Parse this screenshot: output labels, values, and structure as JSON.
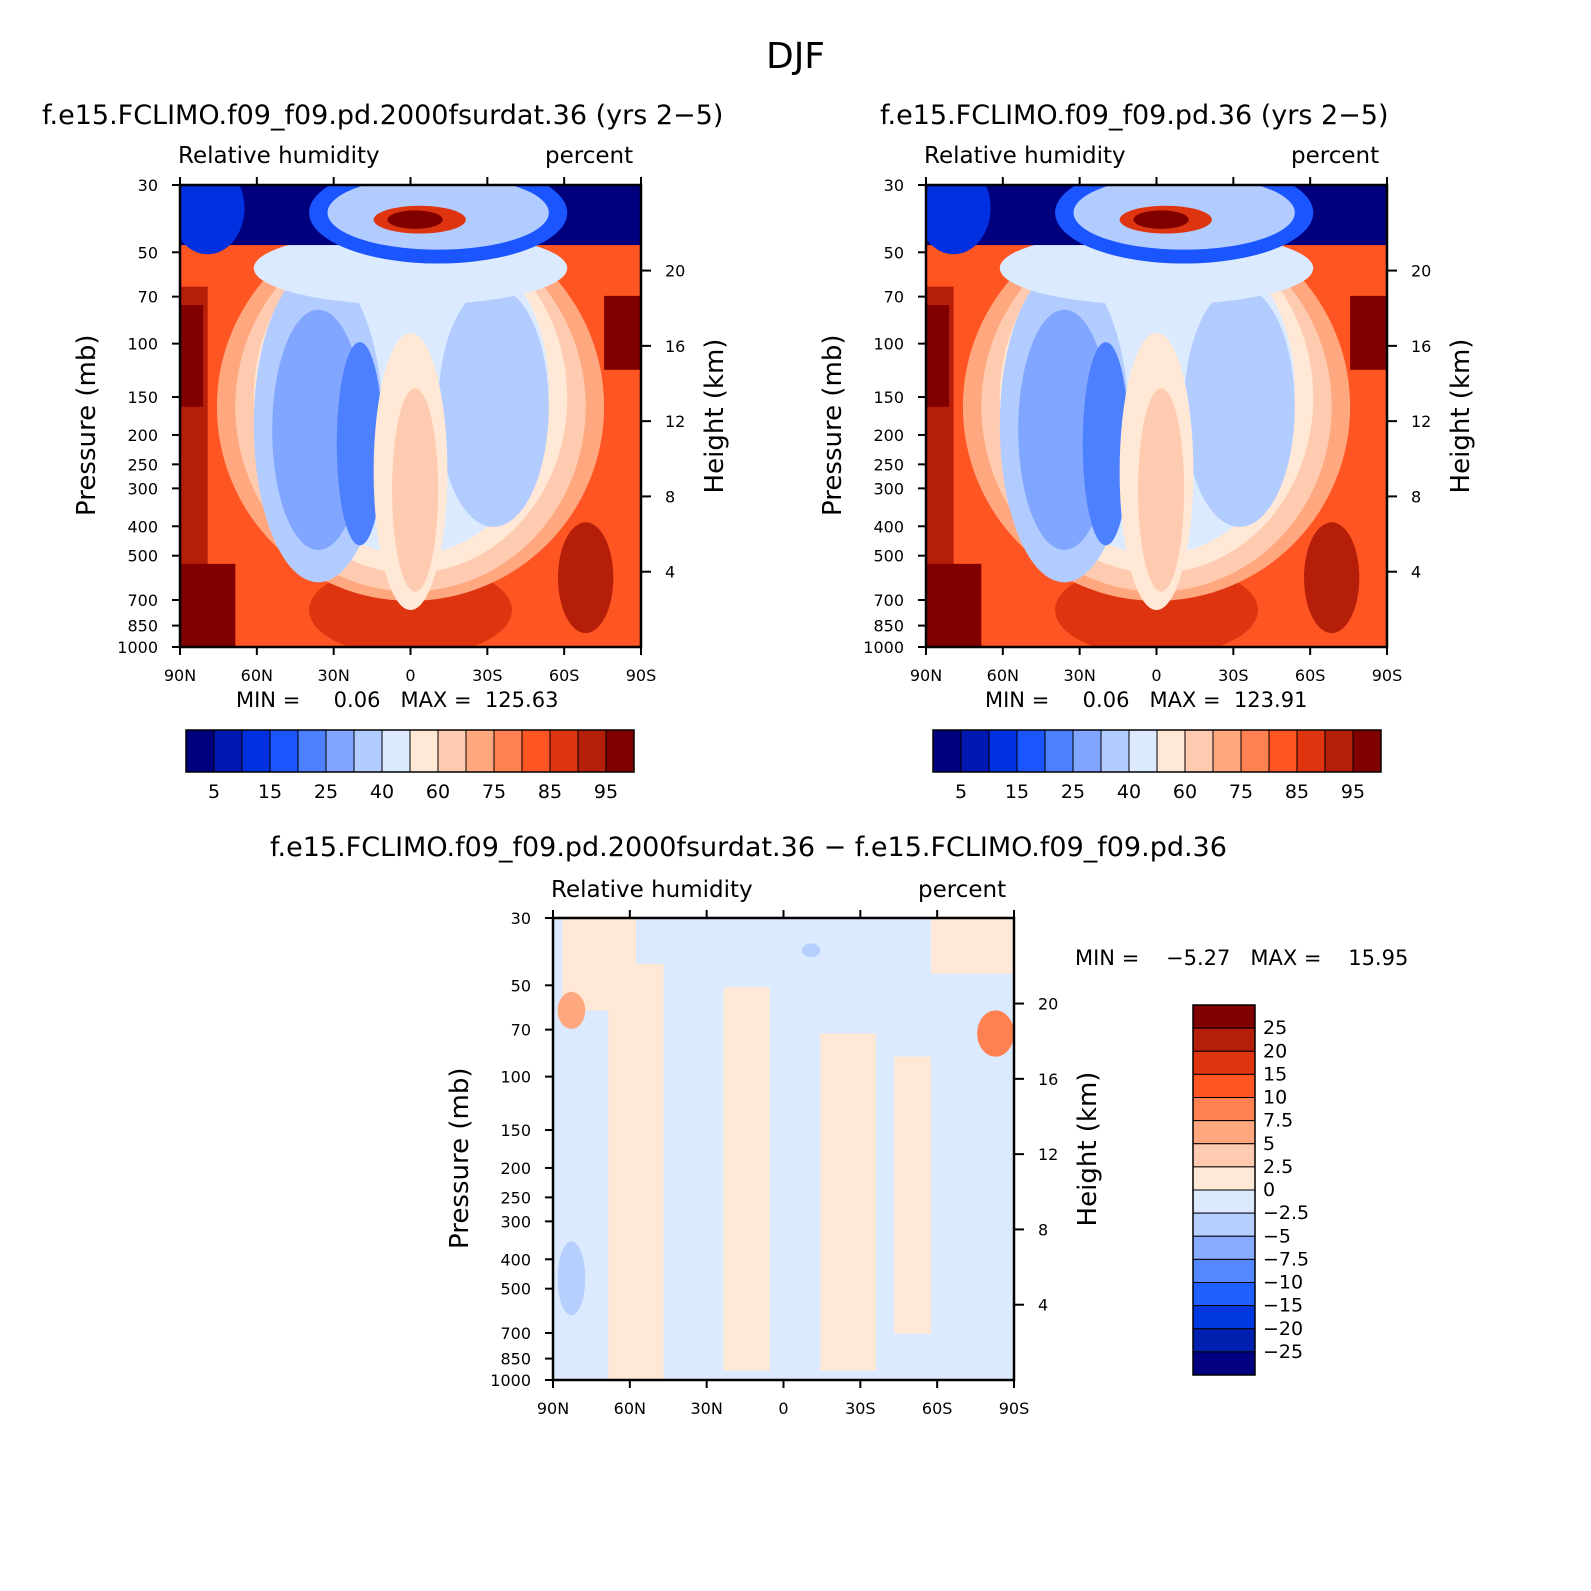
{
  "figure": {
    "title": "DJF"
  },
  "colors": {
    "abs_scale": [
      "#00007f",
      "#0018b0",
      "#0030e0",
      "#1a55ff",
      "#4d80ff",
      "#80a6ff",
      "#b3ccff",
      "#dbeaff",
      "#ffe8d6",
      "#ffcbb0",
      "#ffa880",
      "#ff8050",
      "#ff5522",
      "#de3410",
      "#b51e08",
      "#800000"
    ],
    "diff_scale": [
      "#000080",
      "#0020b0",
      "#0038e0",
      "#2060ff",
      "#5588ff",
      "#88aaff",
      "#b6cfff",
      "#dbeaff",
      "#ffe8d6",
      "#ffcbb0",
      "#ffa880",
      "#ff8050",
      "#ff5522",
      "#de3410",
      "#b51e08",
      "#800000"
    ]
  },
  "panels": [
    {
      "id": "case1",
      "title": "f.e15.FCLIMO.f09_f09.pd.2000fsurdat.36 (yrs 2−5)",
      "variable": "Relative humidity",
      "units": "percent",
      "stats": "MIN =     0.06   MAX =  125.63",
      "ylabel": "Pressure (mb)",
      "ylabel_right": "Height (km)",
      "colorbar_labels": [
        "5",
        "15",
        "25",
        "40",
        "60",
        "75",
        "85",
        "95"
      ]
    },
    {
      "id": "case2",
      "title": "f.e15.FCLIMO.f09_f09.pd.36 (yrs 2−5)",
      "variable": "Relative humidity",
      "units": "percent",
      "stats": "MIN =     0.06   MAX =  123.91",
      "ylabel": "Pressure (mb)",
      "ylabel_right": "Height (km)",
      "colorbar_labels": [
        "5",
        "15",
        "25",
        "40",
        "60",
        "75",
        "85",
        "95"
      ]
    },
    {
      "id": "diff",
      "title": "f.e15.FCLIMO.f09_f09.pd.2000fsurdat.36 − f.e15.FCLIMO.f09_f09.pd.36",
      "variable": "Relative humidity",
      "units": "percent",
      "stats": "MIN =    −5.27   MAX =    15.95",
      "ylabel": "Pressure (mb)",
      "ylabel_right": "Height (km)",
      "colorbar_labels": [
        "25",
        "20",
        "15",
        "10",
        "7.5",
        "5",
        "2.5",
        "0",
        "−2.5",
        "−5",
        "−7.5",
        "−10",
        "−15",
        "−20",
        "−25"
      ]
    }
  ],
  "chart_data": [
    {
      "type": "heatmap",
      "title": "f.e15.FCLIMO.f09_f09.pd.2000fsurdat.36 (yrs 2−5)",
      "variable": "Relative humidity",
      "units": "percent",
      "xlabel": "",
      "ylabel": "Pressure (mb)",
      "ylabel_right": "Height (km)",
      "x_ticks": [
        "90N",
        "60N",
        "30N",
        "0",
        "30S",
        "60S",
        "90S"
      ],
      "y_ticks": [
        "30",
        "50",
        "70",
        "100",
        "150",
        "200",
        "250",
        "300",
        "400",
        "500",
        "700",
        "850",
        "1000"
      ],
      "y_ticks_right": [
        "20",
        "16",
        "12",
        "8",
        "4"
      ],
      "y_scale": "log",
      "ylim": [
        1000,
        30
      ],
      "min": 0.06,
      "max": 125.63,
      "contour_levels": [
        5,
        10,
        15,
        20,
        25,
        30,
        40,
        50,
        60,
        65,
        75,
        80,
        85,
        90,
        95
      ],
      "colorbar_labels": [
        "5",
        "15",
        "25",
        "40",
        "60",
        "75",
        "85",
        "95"
      ],
      "colorbar_placement": "bottom"
    },
    {
      "type": "heatmap",
      "title": "f.e15.FCLIMO.f09_f09.pd.36 (yrs 2−5)",
      "variable": "Relative humidity",
      "units": "percent",
      "xlabel": "",
      "ylabel": "Pressure (mb)",
      "ylabel_right": "Height (km)",
      "x_ticks": [
        "90N",
        "60N",
        "30N",
        "0",
        "30S",
        "60S",
        "90S"
      ],
      "y_ticks": [
        "30",
        "50",
        "70",
        "100",
        "150",
        "200",
        "250",
        "300",
        "400",
        "500",
        "700",
        "850",
        "1000"
      ],
      "y_ticks_right": [
        "20",
        "16",
        "12",
        "8",
        "4"
      ],
      "y_scale": "log",
      "ylim": [
        1000,
        30
      ],
      "min": 0.06,
      "max": 123.91,
      "contour_levels": [
        5,
        10,
        15,
        20,
        25,
        30,
        40,
        50,
        60,
        65,
        75,
        80,
        85,
        90,
        95
      ],
      "colorbar_labels": [
        "5",
        "15",
        "25",
        "40",
        "60",
        "75",
        "85",
        "95"
      ],
      "colorbar_placement": "bottom"
    },
    {
      "type": "heatmap",
      "title": "f.e15.FCLIMO.f09_f09.pd.2000fsurdat.36 − f.e15.FCLIMO.f09_f09.pd.36",
      "variable": "Relative humidity",
      "units": "percent",
      "xlabel": "",
      "ylabel": "Pressure (mb)",
      "ylabel_right": "Height (km)",
      "x_ticks": [
        "90N",
        "60N",
        "30N",
        "0",
        "30S",
        "60S",
        "90S"
      ],
      "y_ticks": [
        "30",
        "50",
        "70",
        "100",
        "150",
        "200",
        "250",
        "300",
        "400",
        "500",
        "700",
        "850",
        "1000"
      ],
      "y_ticks_right": [
        "20",
        "16",
        "12",
        "8",
        "4"
      ],
      "y_scale": "log",
      "ylim": [
        1000,
        30
      ],
      "min": -5.27,
      "max": 15.95,
      "contour_levels": [
        -25,
        -20,
        -15,
        -10,
        -7.5,
        -5,
        -2.5,
        0,
        2.5,
        5,
        7.5,
        10,
        15,
        20,
        25
      ],
      "colorbar_labels": [
        "25",
        "20",
        "15",
        "10",
        "7.5",
        "5",
        "2.5",
        "0",
        "−2.5",
        "−5",
        "−7.5",
        "−10",
        "−15",
        "−20",
        "−25"
      ],
      "colorbar_placement": "right"
    }
  ]
}
